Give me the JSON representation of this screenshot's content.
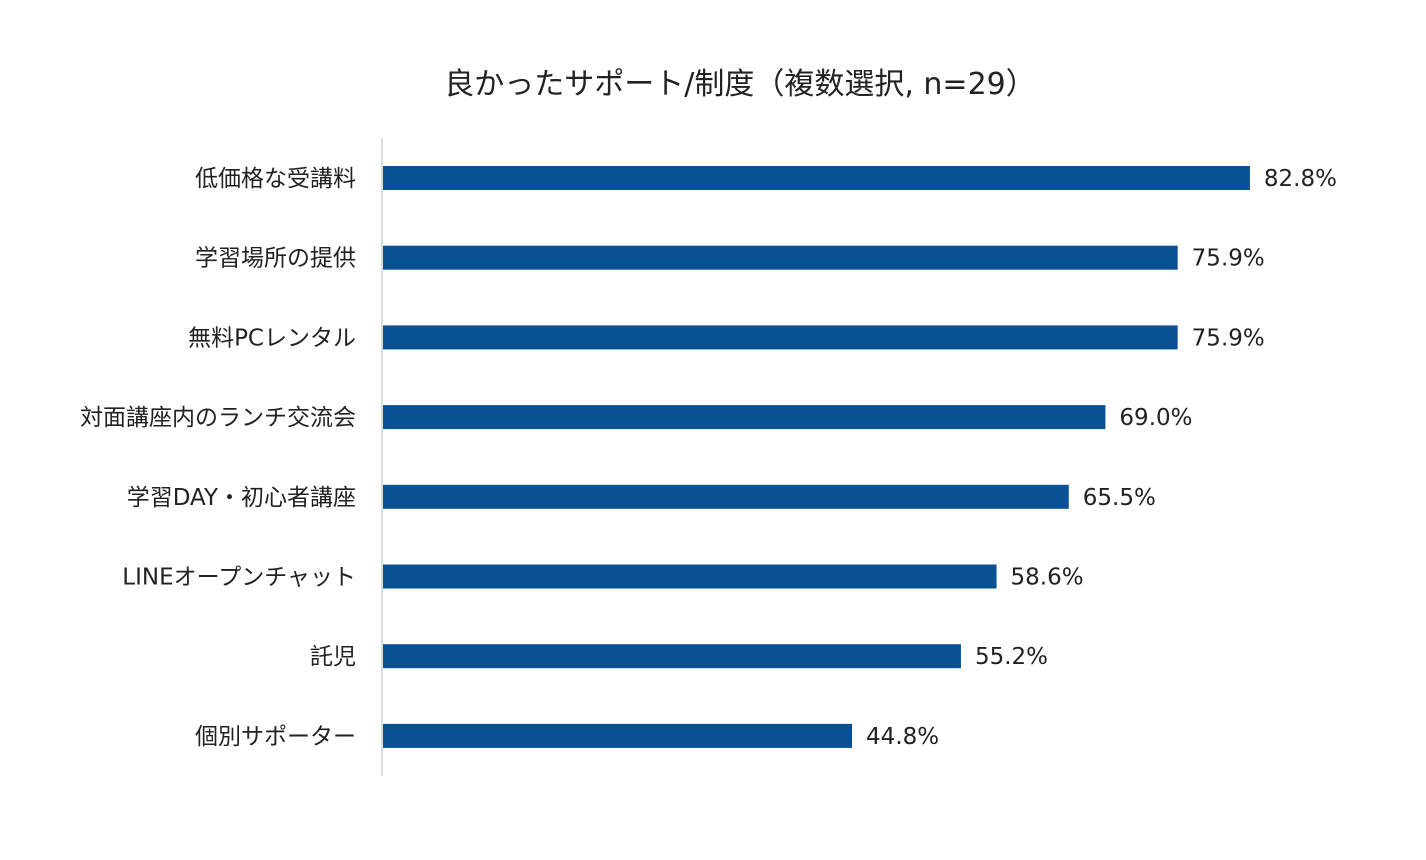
{
  "chart_data": {
    "type": "bar",
    "orientation": "horizontal",
    "title": "良かったサポート/制度（複数選択, n=29）",
    "categories": [
      "低価格な受講料",
      "学習場所の提供",
      "無料PCレンタル",
      "対面講座内のランチ交流会",
      "学習DAY・初心者講座",
      "LINEオープンチャット",
      "託児",
      "個別サポーター"
    ],
    "values": [
      82.8,
      75.9,
      75.9,
      69.0,
      65.5,
      58.6,
      55.2,
      44.8
    ],
    "value_labels": [
      "82.8%",
      "75.9%",
      "75.9%",
      "69.0%",
      "65.5%",
      "58.6%",
      "55.2%",
      "44.8%"
    ],
    "xlim": [
      0,
      100
    ],
    "xlabel": "",
    "ylabel": "",
    "grid": false,
    "legend": "none",
    "bar_color": "#0a5193",
    "axis_color": "#d0d0d0"
  }
}
